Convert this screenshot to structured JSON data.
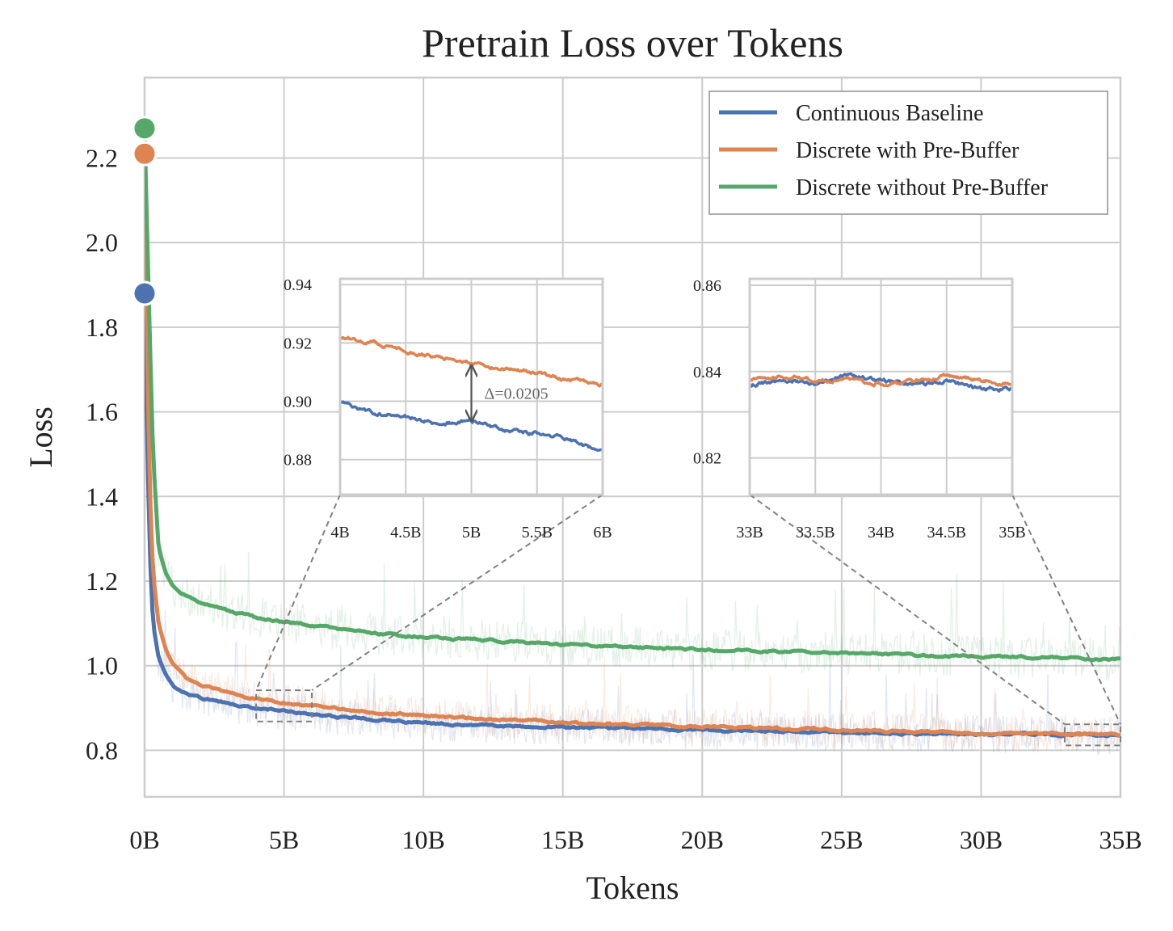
{
  "chart_data": {
    "type": "line",
    "title": "Pretrain Loss over Tokens",
    "xlabel": "Tokens",
    "ylabel": "Loss",
    "xlim": [
      0,
      35
    ],
    "ylim": [
      0.69,
      2.39
    ],
    "x_ticks": [
      0,
      5,
      10,
      15,
      20,
      25,
      30,
      35
    ],
    "x_tick_labels": [
      "0B",
      "5B",
      "10B",
      "15B",
      "20B",
      "25B",
      "30B",
      "35B"
    ],
    "y_ticks": [
      0.8,
      1.0,
      1.2,
      1.4,
      1.6,
      1.8,
      2.0,
      2.2
    ],
    "y_tick_labels": [
      "0.8",
      "1.0",
      "1.2",
      "1.4",
      "1.6",
      "1.8",
      "2.0",
      "2.2"
    ],
    "grid": true,
    "legend_position": "top-right",
    "series": [
      {
        "name": "Continuous Baseline",
        "color": "#4c72b0",
        "start_point": [
          0,
          1.88
        ],
        "x": [
          0,
          0.1,
          0.2,
          0.3,
          0.5,
          0.75,
          1,
          1.5,
          2,
          3,
          4,
          5,
          6,
          8,
          10,
          12,
          15,
          20,
          25,
          30,
          33,
          35
        ],
        "y": [
          1.88,
          1.5,
          1.25,
          1.1,
          1.02,
          0.98,
          0.955,
          0.935,
          0.925,
          0.91,
          0.9,
          0.895,
          0.885,
          0.875,
          0.865,
          0.86,
          0.855,
          0.848,
          0.842,
          0.838,
          0.837,
          0.835
        ]
      },
      {
        "name": "Discrete with Pre-Buffer",
        "color": "#dd8452",
        "start_point": [
          0,
          2.21
        ],
        "x": [
          0,
          0.1,
          0.2,
          0.3,
          0.5,
          0.75,
          1,
          1.5,
          2,
          3,
          4,
          5,
          6,
          8,
          10,
          12,
          15,
          20,
          25,
          30,
          33,
          35
        ],
        "y": [
          2.21,
          1.7,
          1.4,
          1.22,
          1.1,
          1.04,
          1.005,
          0.97,
          0.955,
          0.935,
          0.922,
          0.912,
          0.905,
          0.892,
          0.882,
          0.875,
          0.866,
          0.856,
          0.848,
          0.841,
          0.839,
          0.837
        ]
      },
      {
        "name": "Discrete without Pre-Buffer",
        "color": "#55a868",
        "start_point": [
          0,
          2.27
        ],
        "x": [
          0,
          0.1,
          0.2,
          0.3,
          0.5,
          0.75,
          1,
          1.5,
          2,
          3,
          4,
          5,
          6,
          8,
          10,
          12,
          15,
          20,
          25,
          30,
          33,
          35
        ],
        "y": [
          2.27,
          2.0,
          1.75,
          1.5,
          1.28,
          1.22,
          1.19,
          1.165,
          1.15,
          1.13,
          1.115,
          1.103,
          1.095,
          1.078,
          1.068,
          1.06,
          1.05,
          1.038,
          1.03,
          1.022,
          1.018,
          1.015
        ]
      }
    ],
    "insets": [
      {
        "xlim": [
          4,
          6
        ],
        "ylim": [
          0.868,
          0.942
        ],
        "x_ticks": [
          4,
          4.5,
          5,
          5.5,
          6
        ],
        "x_tick_labels": [
          "4B",
          "4.5B",
          "5B",
          "5.5B",
          "6B"
        ],
        "y_ticks": [
          0.88,
          0.9,
          0.92,
          0.94
        ],
        "y_tick_labels": [
          "0.88",
          "0.90",
          "0.92",
          "0.94"
        ],
        "annotation": "Δ=0.0205",
        "annotation_x": 5,
        "annotation_between": [
          0.8925,
          0.913
        ],
        "series": [
          {
            "name": "Continuous Baseline",
            "x": [
              4,
              4.25,
              4.5,
              4.75,
              5,
              5.25,
              5.5,
              5.75,
              6
            ],
            "y": [
              0.9,
              0.896,
              0.895,
              0.892,
              0.8935,
              0.89,
              0.889,
              0.887,
              0.882
            ]
          },
          {
            "name": "Discrete with Pre-Buffer",
            "x": [
              4,
              4.25,
              4.5,
              4.75,
              5,
              5.25,
              5.5,
              5.75,
              6
            ],
            "y": [
              0.922,
              0.92,
              0.917,
              0.915,
              0.913,
              0.911,
              0.91,
              0.907,
              0.906
            ]
          }
        ]
      },
      {
        "xlim": [
          33,
          35
        ],
        "ylim": [
          0.8115,
          0.8615
        ],
        "x_ticks": [
          33,
          33.5,
          34,
          34.5,
          35
        ],
        "x_tick_labels": [
          "33B",
          "33.5B",
          "34B",
          "34.5B",
          "35B"
        ],
        "y_ticks": [
          0.82,
          0.84,
          0.86
        ],
        "y_tick_labels": [
          "0.82",
          "0.84",
          "0.86"
        ],
        "series": [
          {
            "name": "Continuous Baseline",
            "x": [
              33,
              33.25,
              33.5,
              33.75,
              34,
              34.25,
              34.5,
              34.75,
              35
            ],
            "y": [
              0.837,
              0.838,
              0.837,
              0.839,
              0.838,
              0.837,
              0.838,
              0.836,
              0.836
            ]
          },
          {
            "name": "Discrete with Pre-Buffer",
            "x": [
              33,
              33.25,
              33.5,
              33.75,
              34,
              34.25,
              34.5,
              34.75,
              35
            ],
            "y": [
              0.838,
              0.839,
              0.838,
              0.838,
              0.837,
              0.838,
              0.839,
              0.838,
              0.837
            ]
          }
        ]
      }
    ]
  }
}
